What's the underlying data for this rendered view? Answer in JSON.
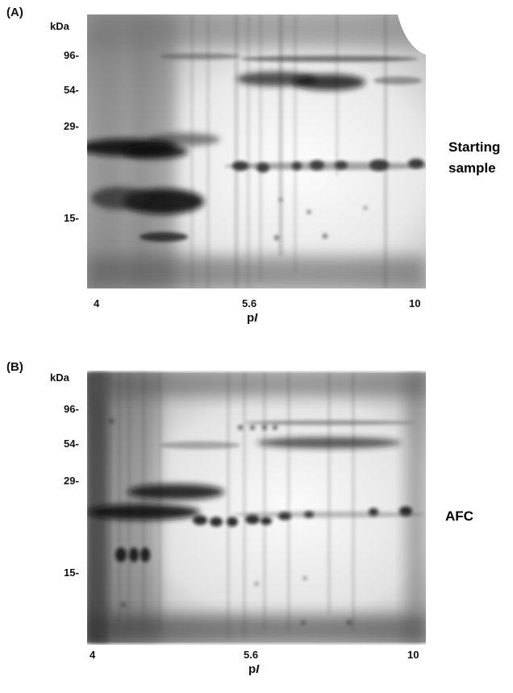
{
  "panels": [
    {
      "panel_label": "(A)",
      "y_unit": "kDa",
      "mw_markers": [
        "96-",
        "54-",
        "29-",
        "15-"
      ],
      "pi_ticks": [
        "4",
        "5.6",
        "10"
      ],
      "x_axis_prefix": "p",
      "x_axis_italic": "I",
      "caption_lines": [
        "Starting",
        "sample"
      ]
    },
    {
      "panel_label": "(B)",
      "y_unit": "kDa",
      "mw_markers": [
        "96-",
        "54-",
        "29-",
        "15-"
      ],
      "pi_ticks": [
        "4",
        "5.6",
        "10"
      ],
      "x_axis_prefix": "p",
      "x_axis_italic": "I",
      "caption_lines": [
        "AFC"
      ]
    }
  ]
}
